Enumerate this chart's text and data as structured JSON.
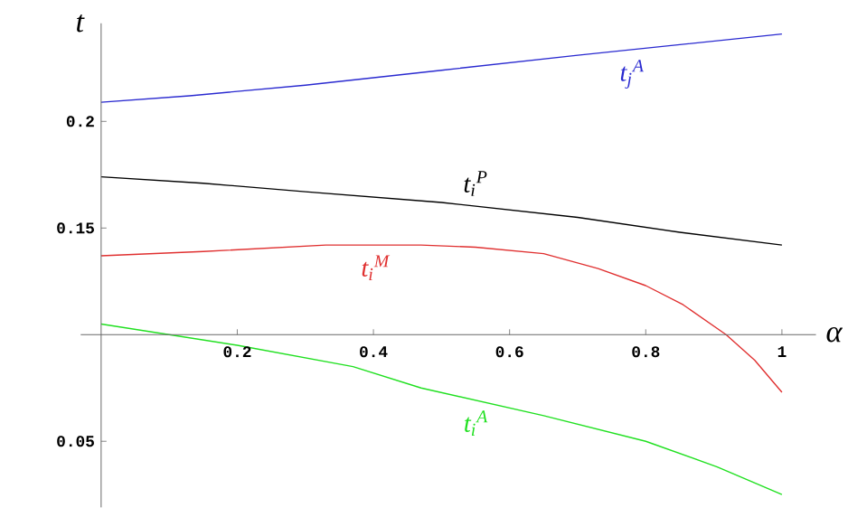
{
  "chart_data": {
    "type": "line",
    "xlabel": "α",
    "ylabel": "t",
    "xlim": [
      -0.03,
      1.05
    ],
    "ylim": [
      0.019,
      0.246
    ],
    "xticks": [
      0.2,
      0.4,
      0.6,
      0.8,
      1
    ],
    "yticks": [
      0.05,
      {
        "value": 0.1,
        "label": null
      },
      0.15,
      0.2
    ],
    "legend": false,
    "marker": "none",
    "line_style": "solid",
    "series": [
      {
        "name": "*t*$_{j}$$^{A}$",
        "color": "#2a2ad0",
        "x": [
          0,
          0.13,
          0.3,
          0.5,
          0.7,
          0.85,
          1
        ],
        "values": [
          0.209,
          0.212,
          0.217,
          0.224,
          0.231,
          0.236,
          0.241
        ]
      },
      {
        "name": "*t*$_{i}$$^{P}$",
        "color": "#000000",
        "x": [
          0,
          0.15,
          0.3,
          0.5,
          0.7,
          0.85,
          1
        ],
        "values": [
          0.174,
          0.171,
          0.167,
          0.162,
          0.155,
          0.148,
          0.142
        ]
      },
      {
        "name": "*t*$_{i}$$^{M}$",
        "color": "#e03030",
        "x": [
          0,
          0.15,
          0.33,
          0.47,
          0.55,
          0.65,
          0.73,
          0.8,
          0.855,
          0.918,
          0.96,
          1
        ],
        "values": [
          0.137,
          0.139,
          0.142,
          0.142,
          0.141,
          0.138,
          0.131,
          0.123,
          0.114,
          0.1,
          0.088,
          0.073
        ]
      },
      {
        "name": "*t*$_{i}$$^{A}$",
        "color": "#20e020",
        "x": [
          0,
          0.2,
          0.37,
          0.47,
          0.65,
          0.8,
          0.905,
          1
        ],
        "values": [
          0.105,
          0.095,
          0.085,
          0.075,
          0.062,
          0.05,
          0.038,
          0.025
        ]
      }
    ]
  }
}
